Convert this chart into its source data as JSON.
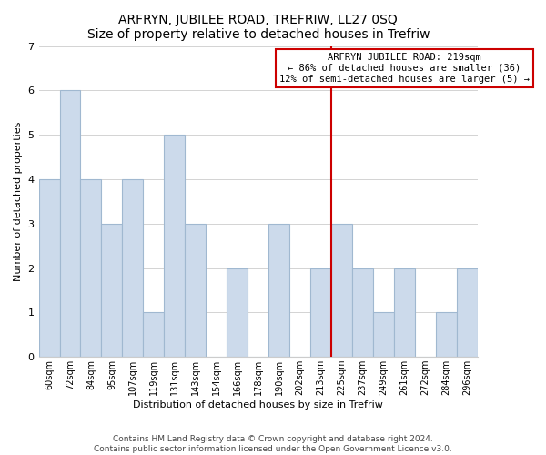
{
  "title": "ARFRYN, JUBILEE ROAD, TREFRIW, LL27 0SQ",
  "subtitle": "Size of property relative to detached houses in Trefriw",
  "xlabel": "Distribution of detached houses by size in Trefriw",
  "ylabel": "Number of detached properties",
  "bar_labels": [
    "60sqm",
    "72sqm",
    "84sqm",
    "95sqm",
    "107sqm",
    "119sqm",
    "131sqm",
    "143sqm",
    "154sqm",
    "166sqm",
    "178sqm",
    "190sqm",
    "202sqm",
    "213sqm",
    "225sqm",
    "237sqm",
    "249sqm",
    "261sqm",
    "272sqm",
    "284sqm",
    "296sqm"
  ],
  "bar_values": [
    4,
    6,
    4,
    3,
    4,
    1,
    5,
    3,
    0,
    2,
    0,
    3,
    0,
    2,
    3,
    2,
    1,
    2,
    0,
    1,
    2
  ],
  "bar_color": "#ccdaeb",
  "bar_edge_color": "#a0b8d0",
  "ylim": [
    0,
    7
  ],
  "yticks": [
    0,
    1,
    2,
    3,
    4,
    5,
    6,
    7
  ],
  "annotation_line1": "ARFRYN JUBILEE ROAD: 219sqm",
  "annotation_line2": "← 86% of detached houses are smaller (36)",
  "annotation_line3": "12% of semi-detached houses are larger (5) →",
  "footer_line1": "Contains HM Land Registry data © Crown copyright and database right 2024.",
  "footer_line2": "Contains public sector information licensed under the Open Government Licence v3.0.",
  "line_color": "#cc0000",
  "box_edge_color": "#cc0000",
  "background_color": "#ffffff",
  "grid_color": "#cccccc",
  "title_fontsize": 10,
  "axis_label_fontsize": 8,
  "tick_fontsize": 7,
  "annotation_fontsize": 7.5,
  "footer_fontsize": 6.5
}
